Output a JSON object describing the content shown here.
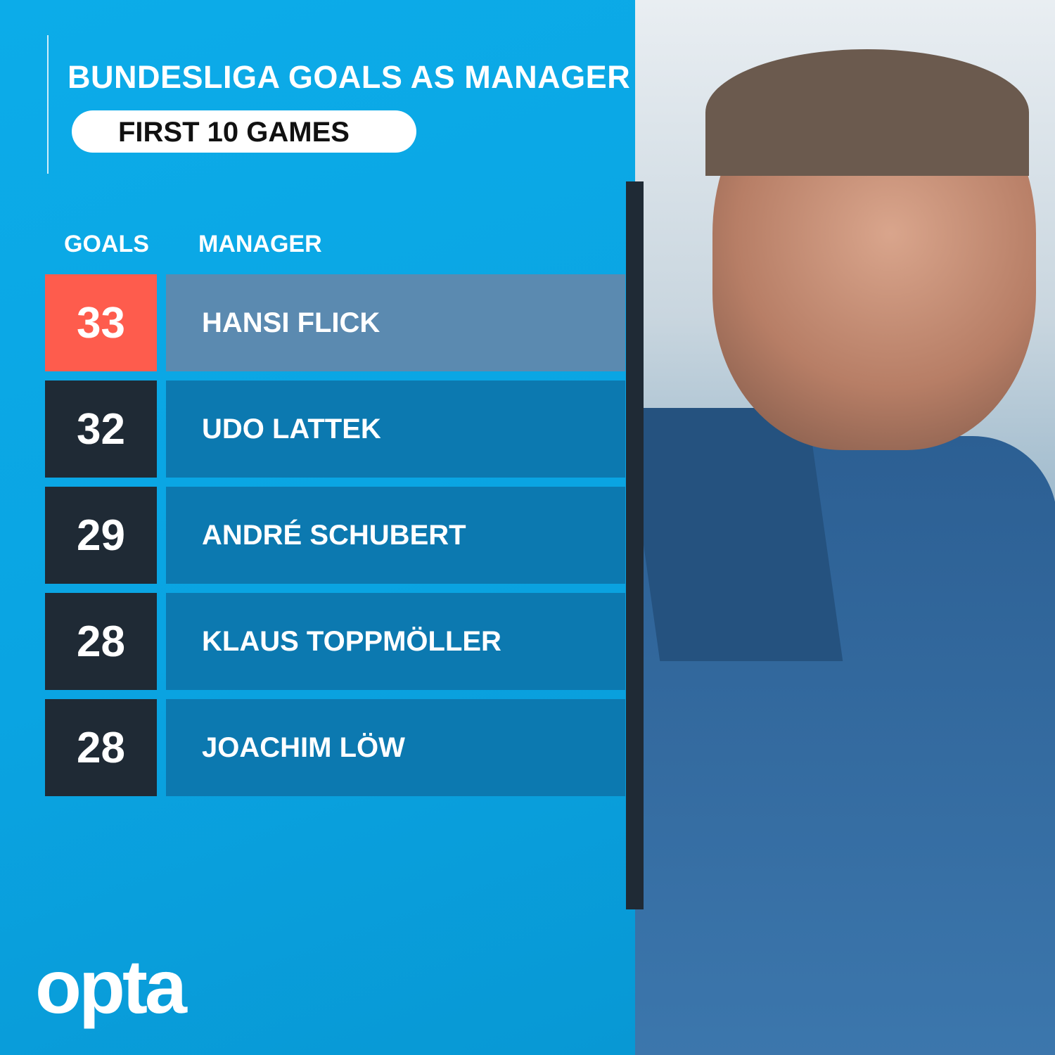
{
  "title": "BUNDESLIGA GOALS AS MANAGER",
  "subtitle": "FIRST 10 GAMES",
  "headers": {
    "goals": "GOALS",
    "manager": "MANAGER"
  },
  "logo": "opta",
  "colors": {
    "background": "#0aa6e2",
    "highlight_goals": "#fe5c4d",
    "highlight_name": "#5b8ab0",
    "goals_box": "#1f2a35",
    "name_box": "#0c79b0"
  },
  "chart_data": {
    "type": "table",
    "title": "BUNDESLIGA GOALS AS MANAGER",
    "subtitle": "FIRST 10 GAMES",
    "columns": [
      "GOALS",
      "MANAGER"
    ],
    "rows": [
      {
        "goals": "33",
        "manager": "HANSI FLICK",
        "highlight": true
      },
      {
        "goals": "32",
        "manager": "UDO LATTEK"
      },
      {
        "goals": "29",
        "manager": "ANDRÉ SCHUBERT"
      },
      {
        "goals": "28",
        "manager": "KLAUS TOPPMÖLLER"
      },
      {
        "goals": "28",
        "manager": "JOACHIM LÖW"
      }
    ]
  }
}
